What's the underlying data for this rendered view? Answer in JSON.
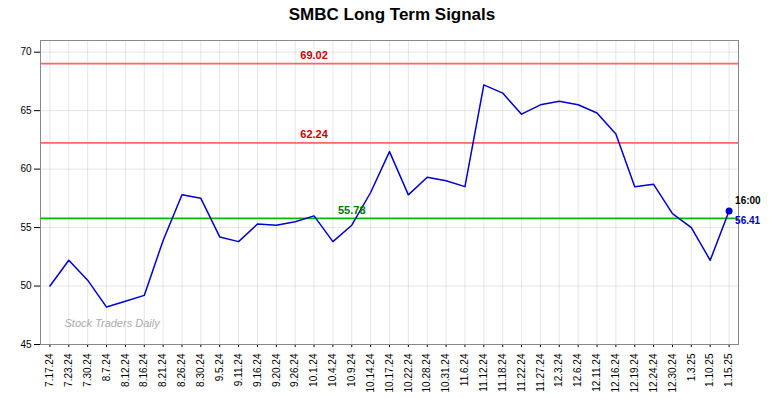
{
  "chart_data": {
    "type": "line",
    "title": "SMBC Long Term Signals",
    "categories": [
      "7.17.24",
      "7.23.24",
      "7.30.24",
      "8.7.24",
      "8.12.24",
      "8.16.24",
      "8.21.24",
      "8.26.24",
      "8.30.24",
      "9.5.24",
      "9.11.24",
      "9.16.24",
      "9.20.24",
      "9.26.24",
      "10.1.24",
      "10.4.24",
      "10.9.24",
      "10.14.24",
      "10.17.24",
      "10.22.24",
      "10.28.24",
      "10.31.24",
      "11.6.24",
      "11.12.24",
      "11.18.24",
      "11.22.24",
      "11.27.24",
      "12.3.24",
      "12.6.24",
      "12.11.24",
      "12.16.24",
      "12.19.24",
      "12.24.24",
      "12.30.24",
      "1.3.25",
      "1.10.25",
      "1.15.25"
    ],
    "values": [
      50.0,
      52.2,
      50.5,
      48.2,
      48.7,
      49.2,
      53.9,
      57.8,
      57.5,
      54.2,
      53.8,
      55.3,
      55.2,
      55.5,
      56.0,
      53.8,
      55.2,
      58.0,
      61.5,
      57.8,
      59.3,
      59.0,
      58.5,
      67.2,
      66.5,
      64.7,
      65.5,
      65.8,
      65.5,
      64.8,
      63.0,
      58.5,
      58.7,
      56.2,
      55.0,
      52.2,
      56.41
    ],
    "color": "#0000cc",
    "ylim": [
      45,
      71
    ],
    "yticks": [
      45,
      50,
      55,
      60,
      65,
      70
    ],
    "grid": true,
    "reference_lines": [
      {
        "value": 55.78,
        "color": "#00bb00"
      },
      {
        "value": 62.24,
        "color": "#ff6666"
      },
      {
        "value": 69.02,
        "color": "#ff6666"
      }
    ],
    "annotations": [
      {
        "text": "69.02",
        "x": "10.1.24",
        "y": 69.02,
        "color": "#cc0000"
      },
      {
        "text": "62.24",
        "x": "10.1.24",
        "y": 62.24,
        "color": "#cc0000"
      },
      {
        "text": "55.78",
        "x": "10.9.24",
        "y": 55.78,
        "color": "#007700"
      },
      {
        "text": "16:00",
        "x": "1.15.25",
        "y": 56.41,
        "color": "#000000"
      },
      {
        "text": "56.41",
        "x": "1.15.25",
        "y": 56.41,
        "color": "#0000cc"
      }
    ],
    "watermark": "Stock Traders Daily"
  }
}
